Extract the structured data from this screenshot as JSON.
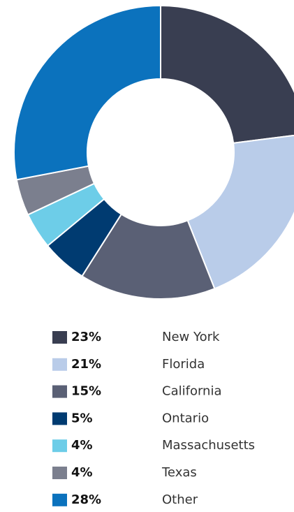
{
  "chart_data": {
    "type": "donut",
    "categories": [
      "New York",
      "Florida",
      "California",
      "Ontario",
      "Massachusetts",
      "Texas",
      "Other"
    ],
    "values": [
      23,
      21,
      15,
      5,
      4,
      4,
      28
    ],
    "value_labels": [
      "23%",
      "21%",
      "15%",
      "5%",
      "4%",
      "4%",
      "28%"
    ],
    "colors": [
      "#393e51",
      "#b9cce9",
      "#5a6075",
      "#003b71",
      "#6dcde8",
      "#7b7f8e",
      "#0b72bd"
    ]
  }
}
